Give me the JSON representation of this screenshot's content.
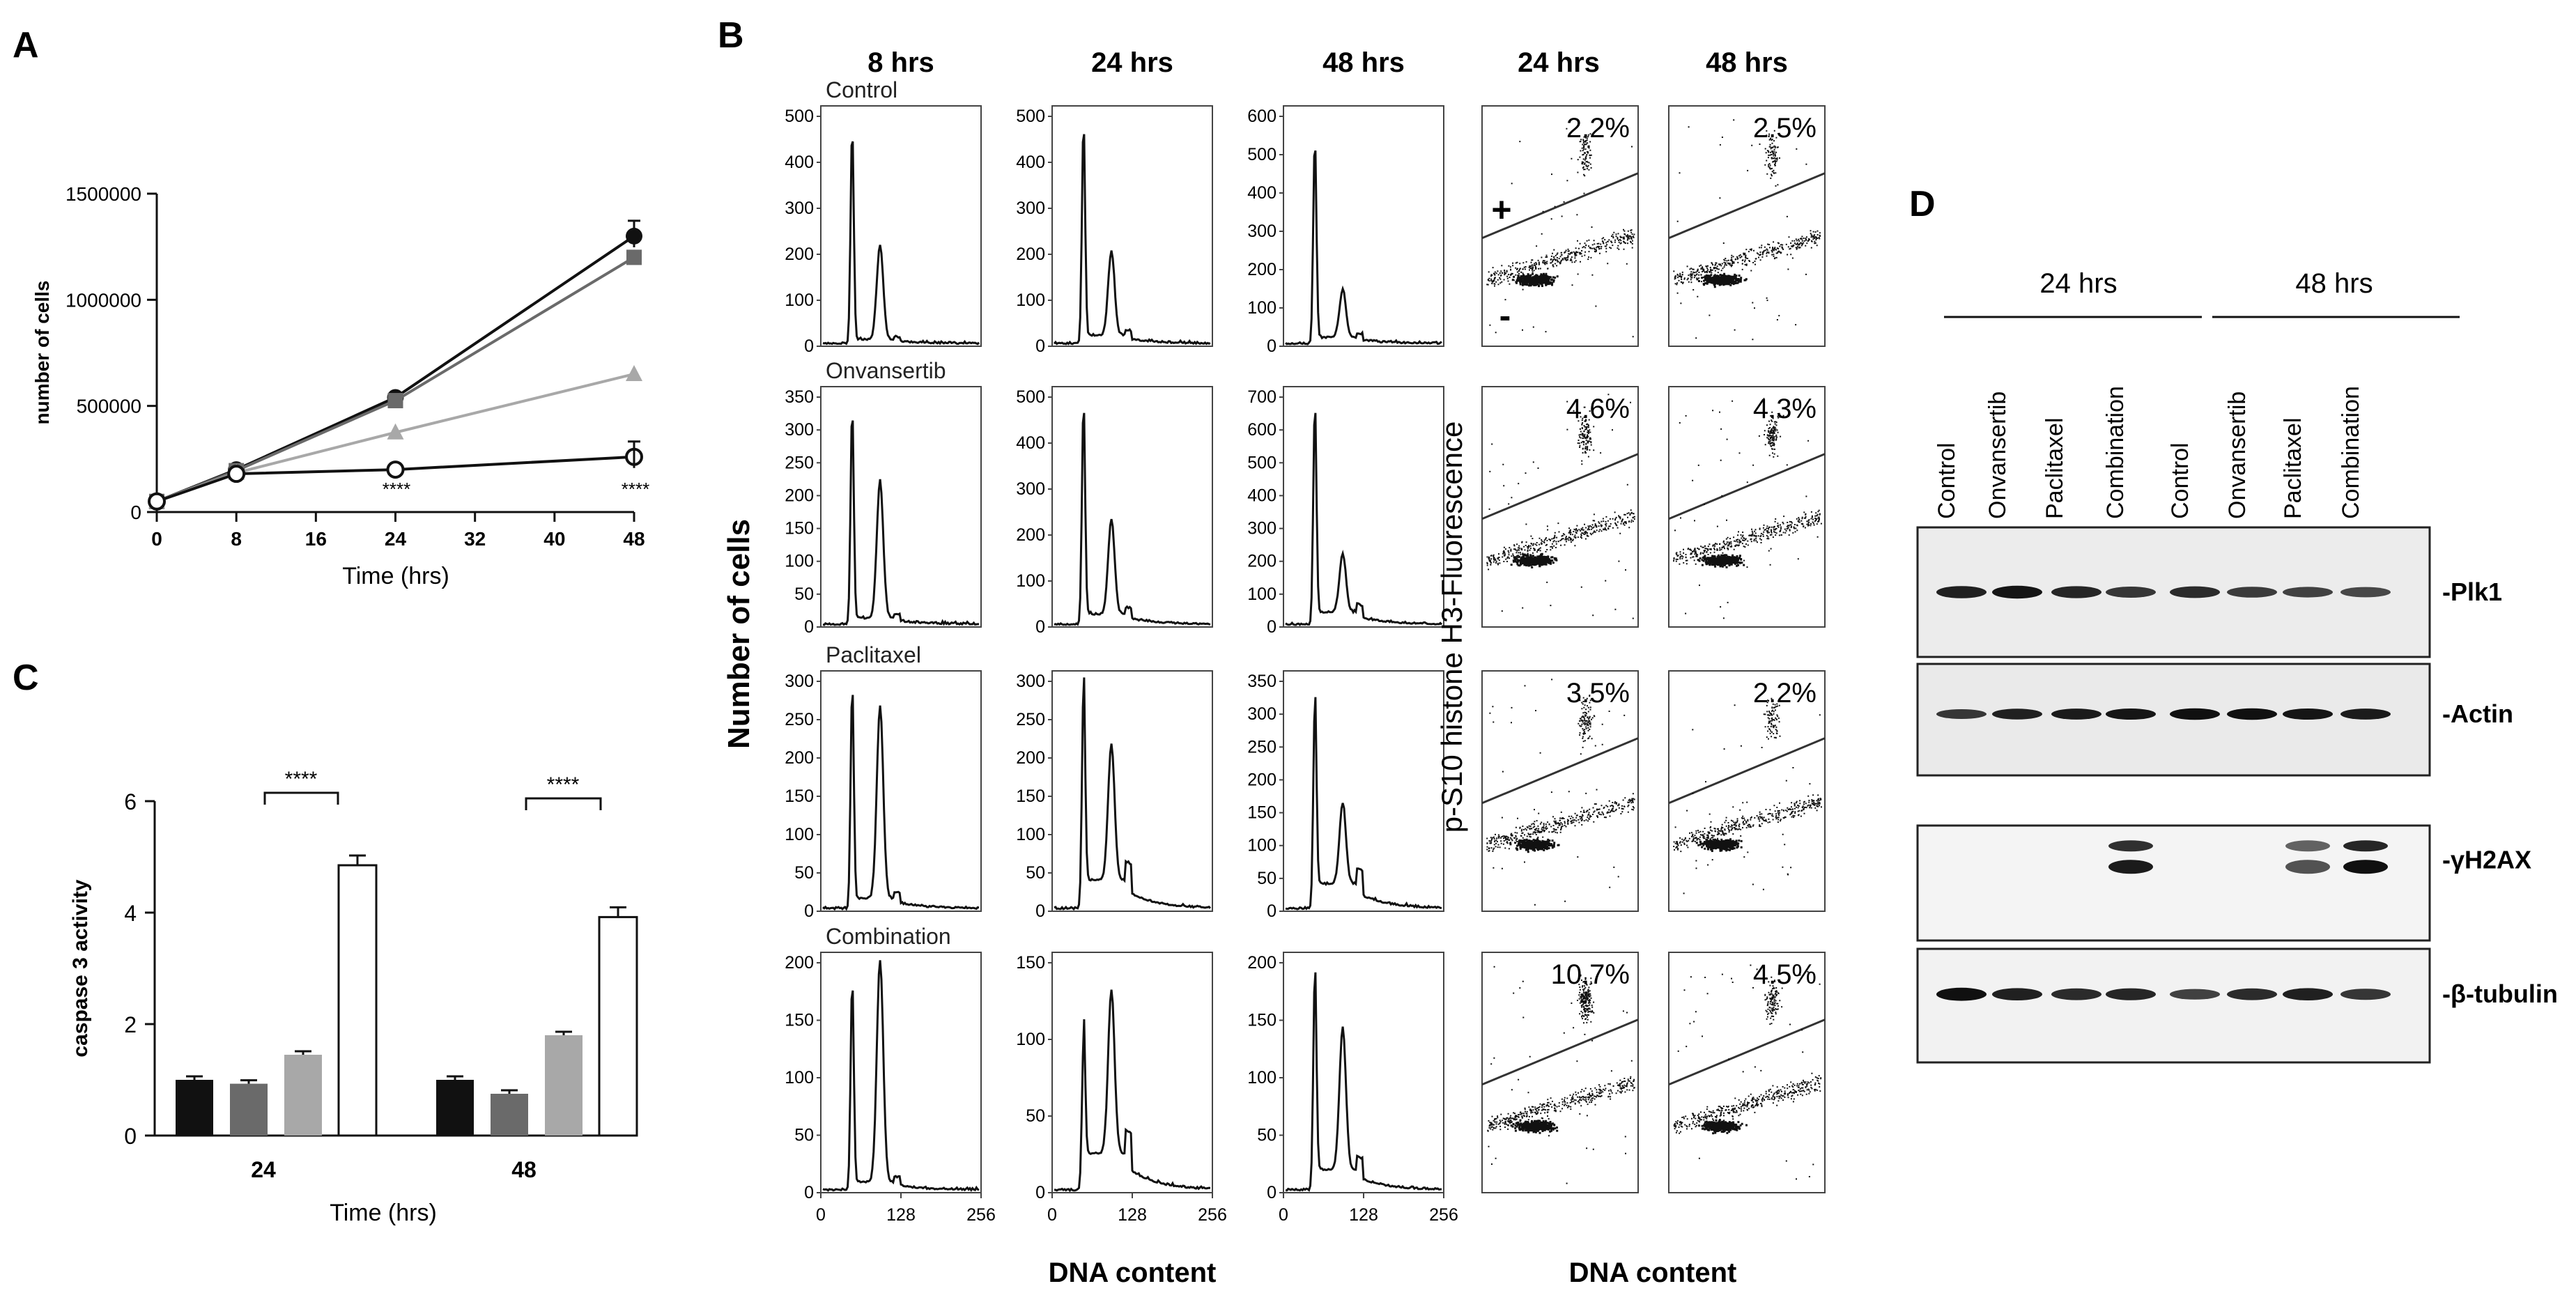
{
  "panel_letters": {
    "a": "A",
    "b": "B",
    "c": "C",
    "d": "D"
  },
  "panelA": {
    "ylabel": "number of cells",
    "xlabel": "Time (hrs)",
    "yticks": [
      "0",
      "500000",
      "1000000",
      "1500000"
    ],
    "xticks": [
      "0",
      "8",
      "16",
      "24",
      "32",
      "40",
      "48"
    ],
    "sig_24": "****",
    "sig_48": "****"
  },
  "panelC": {
    "ylabel": "caspase 3 activity",
    "xlabel": "Time (hrs)",
    "yticks": [
      "0",
      "2",
      "4",
      "6"
    ],
    "groups": [
      "24",
      "48"
    ],
    "sig_24": "****",
    "sig_48": "****"
  },
  "panelB": {
    "time_headers": [
      "8 hrs",
      "24 hrs",
      "48 hrs",
      "24 hrs",
      "48 hrs"
    ],
    "rows": [
      "Control",
      "Onvansertib",
      "Paclitaxel",
      "Combination"
    ],
    "ylabel": "Number of cells",
    "xlabel": "DNA content",
    "scatter_ylabel": "p-S10 histone H3-Fluorescence",
    "scatter_xlabel": "DNA content",
    "xticks": [
      "0",
      "128",
      "256"
    ],
    "yticks": [
      [
        [
          "500",
          "400",
          "300",
          "200",
          "100",
          "0"
        ],
        [
          "500",
          "400",
          "300",
          "200",
          "100",
          "0"
        ],
        [
          "600",
          "500",
          "400",
          "300",
          "200",
          "100",
          "0"
        ]
      ],
      [
        [
          "350",
          "300",
          "250",
          "200",
          "150",
          "100",
          "50",
          "0"
        ],
        [
          "500",
          "400",
          "300",
          "200",
          "100",
          "0"
        ],
        [
          "700",
          "600",
          "500",
          "400",
          "300",
          "200",
          "100",
          "0"
        ]
      ],
      [
        [
          "300",
          "250",
          "200",
          "150",
          "100",
          "50",
          "0"
        ],
        [
          "300",
          "250",
          "200",
          "150",
          "100",
          "50",
          "0"
        ],
        [
          "350",
          "300",
          "250",
          "200",
          "150",
          "100",
          "50",
          "0"
        ]
      ],
      [
        [
          "200",
          "150",
          "100",
          "50",
          "0"
        ],
        [
          "150",
          "100",
          "50",
          "0"
        ],
        [
          "200",
          "150",
          "100",
          "50",
          "0"
        ]
      ]
    ],
    "percents": [
      [
        "2.2%",
        "2.5%"
      ],
      [
        "4.6%",
        "4.3%"
      ],
      [
        "3.5%",
        "2.2%"
      ],
      [
        "10.7%",
        "4.5%"
      ]
    ],
    "plus": "+",
    "minus": "-"
  },
  "panelD": {
    "time_headers": [
      "24 hrs",
      "48 hrs"
    ],
    "lanes": [
      "Control",
      "Onvansertib",
      "Paclitaxel",
      "Combination",
      "Control",
      "Onvansertib",
      "Paclitaxel",
      "Combination"
    ],
    "blots": [
      "-Plk1",
      "-Actin",
      "-γH2AX",
      "-β-tubulin"
    ]
  },
  "chart_data": [
    {
      "type": "line",
      "panel": "A",
      "title": "",
      "xlabel": "Time (hrs)",
      "ylabel": "number of cells",
      "x": [
        0,
        8,
        24,
        48
      ],
      "xlim": [
        0,
        48
      ],
      "ylim": [
        0,
        1500000
      ],
      "series": [
        {
          "name": "Control",
          "color": "#111111",
          "marker": "circle",
          "values": [
            50000,
            200000,
            540000,
            1300000
          ]
        },
        {
          "name": "Onvansertib",
          "color": "#6a6a6a",
          "marker": "square",
          "values": [
            50000,
            195000,
            525000,
            1200000
          ]
        },
        {
          "name": "Paclitaxel",
          "color": "#a8a8a8",
          "marker": "triangle",
          "values": [
            50000,
            185000,
            375000,
            650000
          ]
        },
        {
          "name": "Combination",
          "color": "#111111",
          "marker": "open-circle",
          "values": [
            50000,
            180000,
            200000,
            260000
          ]
        }
      ],
      "annotations": [
        {
          "x": 24,
          "text": "****"
        },
        {
          "x": 48,
          "text": "****"
        }
      ]
    },
    {
      "type": "bar",
      "panel": "C",
      "title": "",
      "xlabel": "Time (hrs)",
      "ylabel": "caspase 3 activity",
      "categories": [
        "24",
        "48"
      ],
      "ylim": [
        0,
        6
      ],
      "series": [
        {
          "name": "Control",
          "color": "#111111",
          "values": [
            1.0,
            1.0
          ]
        },
        {
          "name": "Onvansertib",
          "color": "#6a6a6a",
          "values": [
            0.93,
            0.75
          ]
        },
        {
          "name": "Paclitaxel",
          "color": "#a8a8a8",
          "values": [
            1.45,
            1.8
          ]
        },
        {
          "name": "Combination",
          "color": "#ffffff",
          "values": [
            4.85,
            3.92
          ]
        }
      ],
      "annotations": [
        {
          "category": "24",
          "text": "****"
        },
        {
          "category": "48",
          "text": "****"
        }
      ]
    }
  ]
}
